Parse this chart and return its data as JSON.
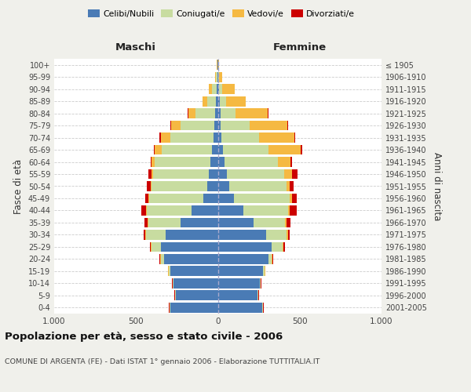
{
  "age_groups": [
    "0-4",
    "5-9",
    "10-14",
    "15-19",
    "20-24",
    "25-29",
    "30-34",
    "35-39",
    "40-44",
    "45-49",
    "50-54",
    "55-59",
    "60-64",
    "65-69",
    "70-74",
    "75-79",
    "80-84",
    "85-89",
    "90-94",
    "95-99",
    "100+"
  ],
  "birth_years": [
    "2001-2005",
    "1996-2000",
    "1991-1995",
    "1986-1990",
    "1981-1985",
    "1976-1980",
    "1971-1975",
    "1966-1970",
    "1961-1965",
    "1956-1960",
    "1951-1955",
    "1946-1950",
    "1941-1945",
    "1936-1940",
    "1931-1935",
    "1926-1930",
    "1921-1925",
    "1916-1920",
    "1911-1915",
    "1906-1910",
    "≤ 1905"
  ],
  "male_celibi": [
    290,
    255,
    270,
    290,
    330,
    350,
    320,
    230,
    160,
    90,
    65,
    55,
    45,
    35,
    25,
    20,
    15,
    10,
    5,
    3,
    2
  ],
  "male_coniugati": [
    5,
    5,
    5,
    10,
    20,
    55,
    120,
    195,
    275,
    330,
    340,
    340,
    340,
    310,
    265,
    210,
    120,
    55,
    30,
    8,
    2
  ],
  "male_vedovi": [
    2,
    2,
    2,
    3,
    3,
    5,
    5,
    5,
    5,
    5,
    5,
    10,
    20,
    40,
    60,
    55,
    45,
    30,
    20,
    5,
    1
  ],
  "male_divorziati": [
    2,
    2,
    2,
    3,
    3,
    5,
    10,
    20,
    30,
    20,
    25,
    20,
    5,
    5,
    5,
    5,
    3,
    0,
    0,
    0,
    0
  ],
  "female_celibi": [
    270,
    240,
    255,
    275,
    310,
    330,
    295,
    220,
    155,
    100,
    70,
    55,
    40,
    30,
    22,
    18,
    15,
    10,
    5,
    3,
    2
  ],
  "female_coniugati": [
    5,
    5,
    5,
    10,
    20,
    65,
    125,
    190,
    275,
    340,
    350,
    350,
    325,
    280,
    230,
    175,
    95,
    40,
    20,
    5,
    2
  ],
  "female_vedovi": [
    3,
    3,
    3,
    3,
    5,
    5,
    8,
    10,
    10,
    15,
    20,
    50,
    80,
    195,
    215,
    230,
    195,
    120,
    80,
    20,
    3
  ],
  "female_divorziati": [
    2,
    2,
    2,
    3,
    5,
    8,
    12,
    25,
    40,
    25,
    25,
    30,
    10,
    10,
    5,
    5,
    3,
    0,
    0,
    0,
    0
  ],
  "colors": {
    "celibi": "#4a7bb5",
    "coniugati": "#c8dca0",
    "vedovi": "#f5b942",
    "divorziati": "#cc0000"
  },
  "title": "Popolazione per età, sesso e stato civile - 2006",
  "subtitle": "COMUNE DI ARGENTA (FE) - Dati ISTAT 1° gennaio 2006 - Elaborazione TUTTITALIA.IT",
  "ylabel_left": "Fasce di età",
  "ylabel_right": "Anni di nascita",
  "xlabel_left": "Maschi",
  "xlabel_right": "Femmine",
  "xlim": 1000,
  "legend_labels": [
    "Celibi/Nubili",
    "Coniugati/e",
    "Vedovi/e",
    "Divorziati/e"
  ],
  "background_color": "#f0f0eb",
  "plot_bg_color": "#ffffff"
}
